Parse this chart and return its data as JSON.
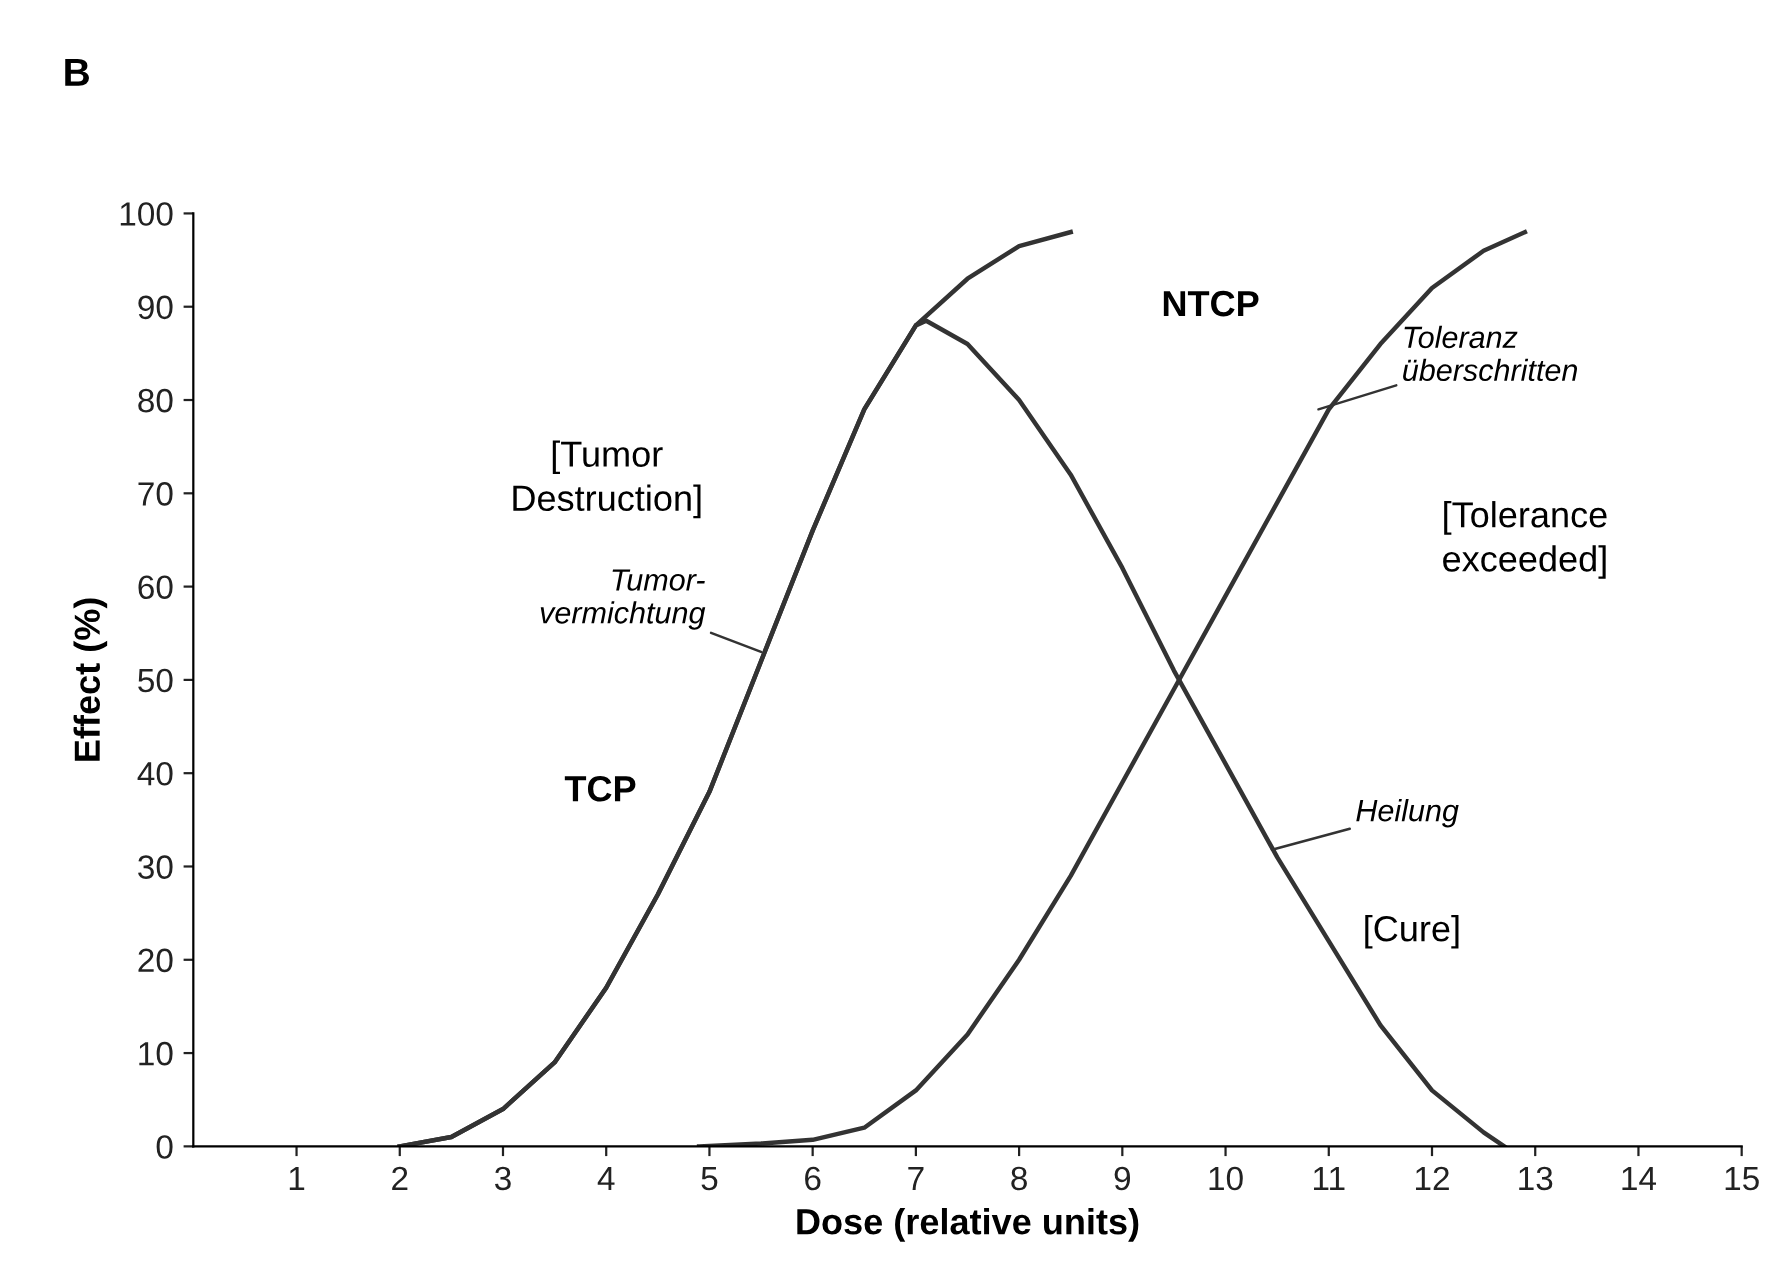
{
  "chart_data": {
    "type": "line",
    "title": "B",
    "xlabel": "Dose (relative units)",
    "ylabel": "Effect (%)",
    "xlim": [
      0,
      15
    ],
    "ylim": [
      0,
      100
    ],
    "xticks": [
      1,
      2,
      3,
      4,
      5,
      6,
      7,
      8,
      9,
      10,
      11,
      12,
      13,
      14,
      15
    ],
    "yticks": [
      0,
      10,
      20,
      30,
      40,
      50,
      60,
      70,
      80,
      90,
      100
    ],
    "grid": false,
    "legend": false,
    "marker": "none",
    "line_style": "solid",
    "series": [
      {
        "color": "#333333",
        "x": [
          2,
          2.5,
          3,
          3.5,
          4,
          4.5,
          5,
          5.5,
          6,
          6.5,
          7,
          7.5,
          8,
          8.5
        ],
        "values": [
          0,
          1,
          4,
          9,
          17,
          27,
          38,
          52,
          66,
          79,
          88,
          93,
          96.5,
          98
        ]
      },
      {
        "color": "#333333",
        "x": [
          2,
          2.5,
          3,
          3.5,
          4,
          4.5,
          5,
          5.5,
          6,
          6.5,
          7,
          7.1,
          7.5,
          8,
          8.5,
          9,
          9.5,
          10,
          10.5,
          11,
          11.5,
          12,
          12.5,
          12.7
        ],
        "values": [
          0,
          1,
          4,
          9,
          17,
          27,
          38,
          52,
          66,
          79,
          88,
          88.5,
          86,
          80,
          72,
          62,
          51,
          41,
          31,
          22,
          13,
          6,
          1.5,
          0
        ]
      },
      {
        "color": "#333333",
        "x": [
          4.9,
          5.5,
          6,
          6.5,
          7,
          7.5,
          8,
          8.5,
          9,
          9.5,
          10,
          10.5,
          11,
          11.5,
          12,
          12.5,
          12.9
        ],
        "values": [
          0,
          0.3,
          0.7,
          2,
          6,
          12,
          20,
          29,
          39,
          49,
          59,
          69,
          79,
          86,
          92,
          96,
          98
        ]
      }
    ],
    "annotations": [
      "TCP",
      "NTCP",
      "[Tumor\nDestruction]",
      "[Tolerance\nexceeded]",
      "[Cure]",
      {
        "text": "Tumor-\nvermichtung",
        "x": 5.5,
        "y": 53
      },
      {
        "text": "Toleranz\nüberschritten",
        "x": 10.9,
        "y": 79
      },
      {
        "text": "Heilung",
        "x": 10.45,
        "y": 31.8
      }
    ]
  }
}
